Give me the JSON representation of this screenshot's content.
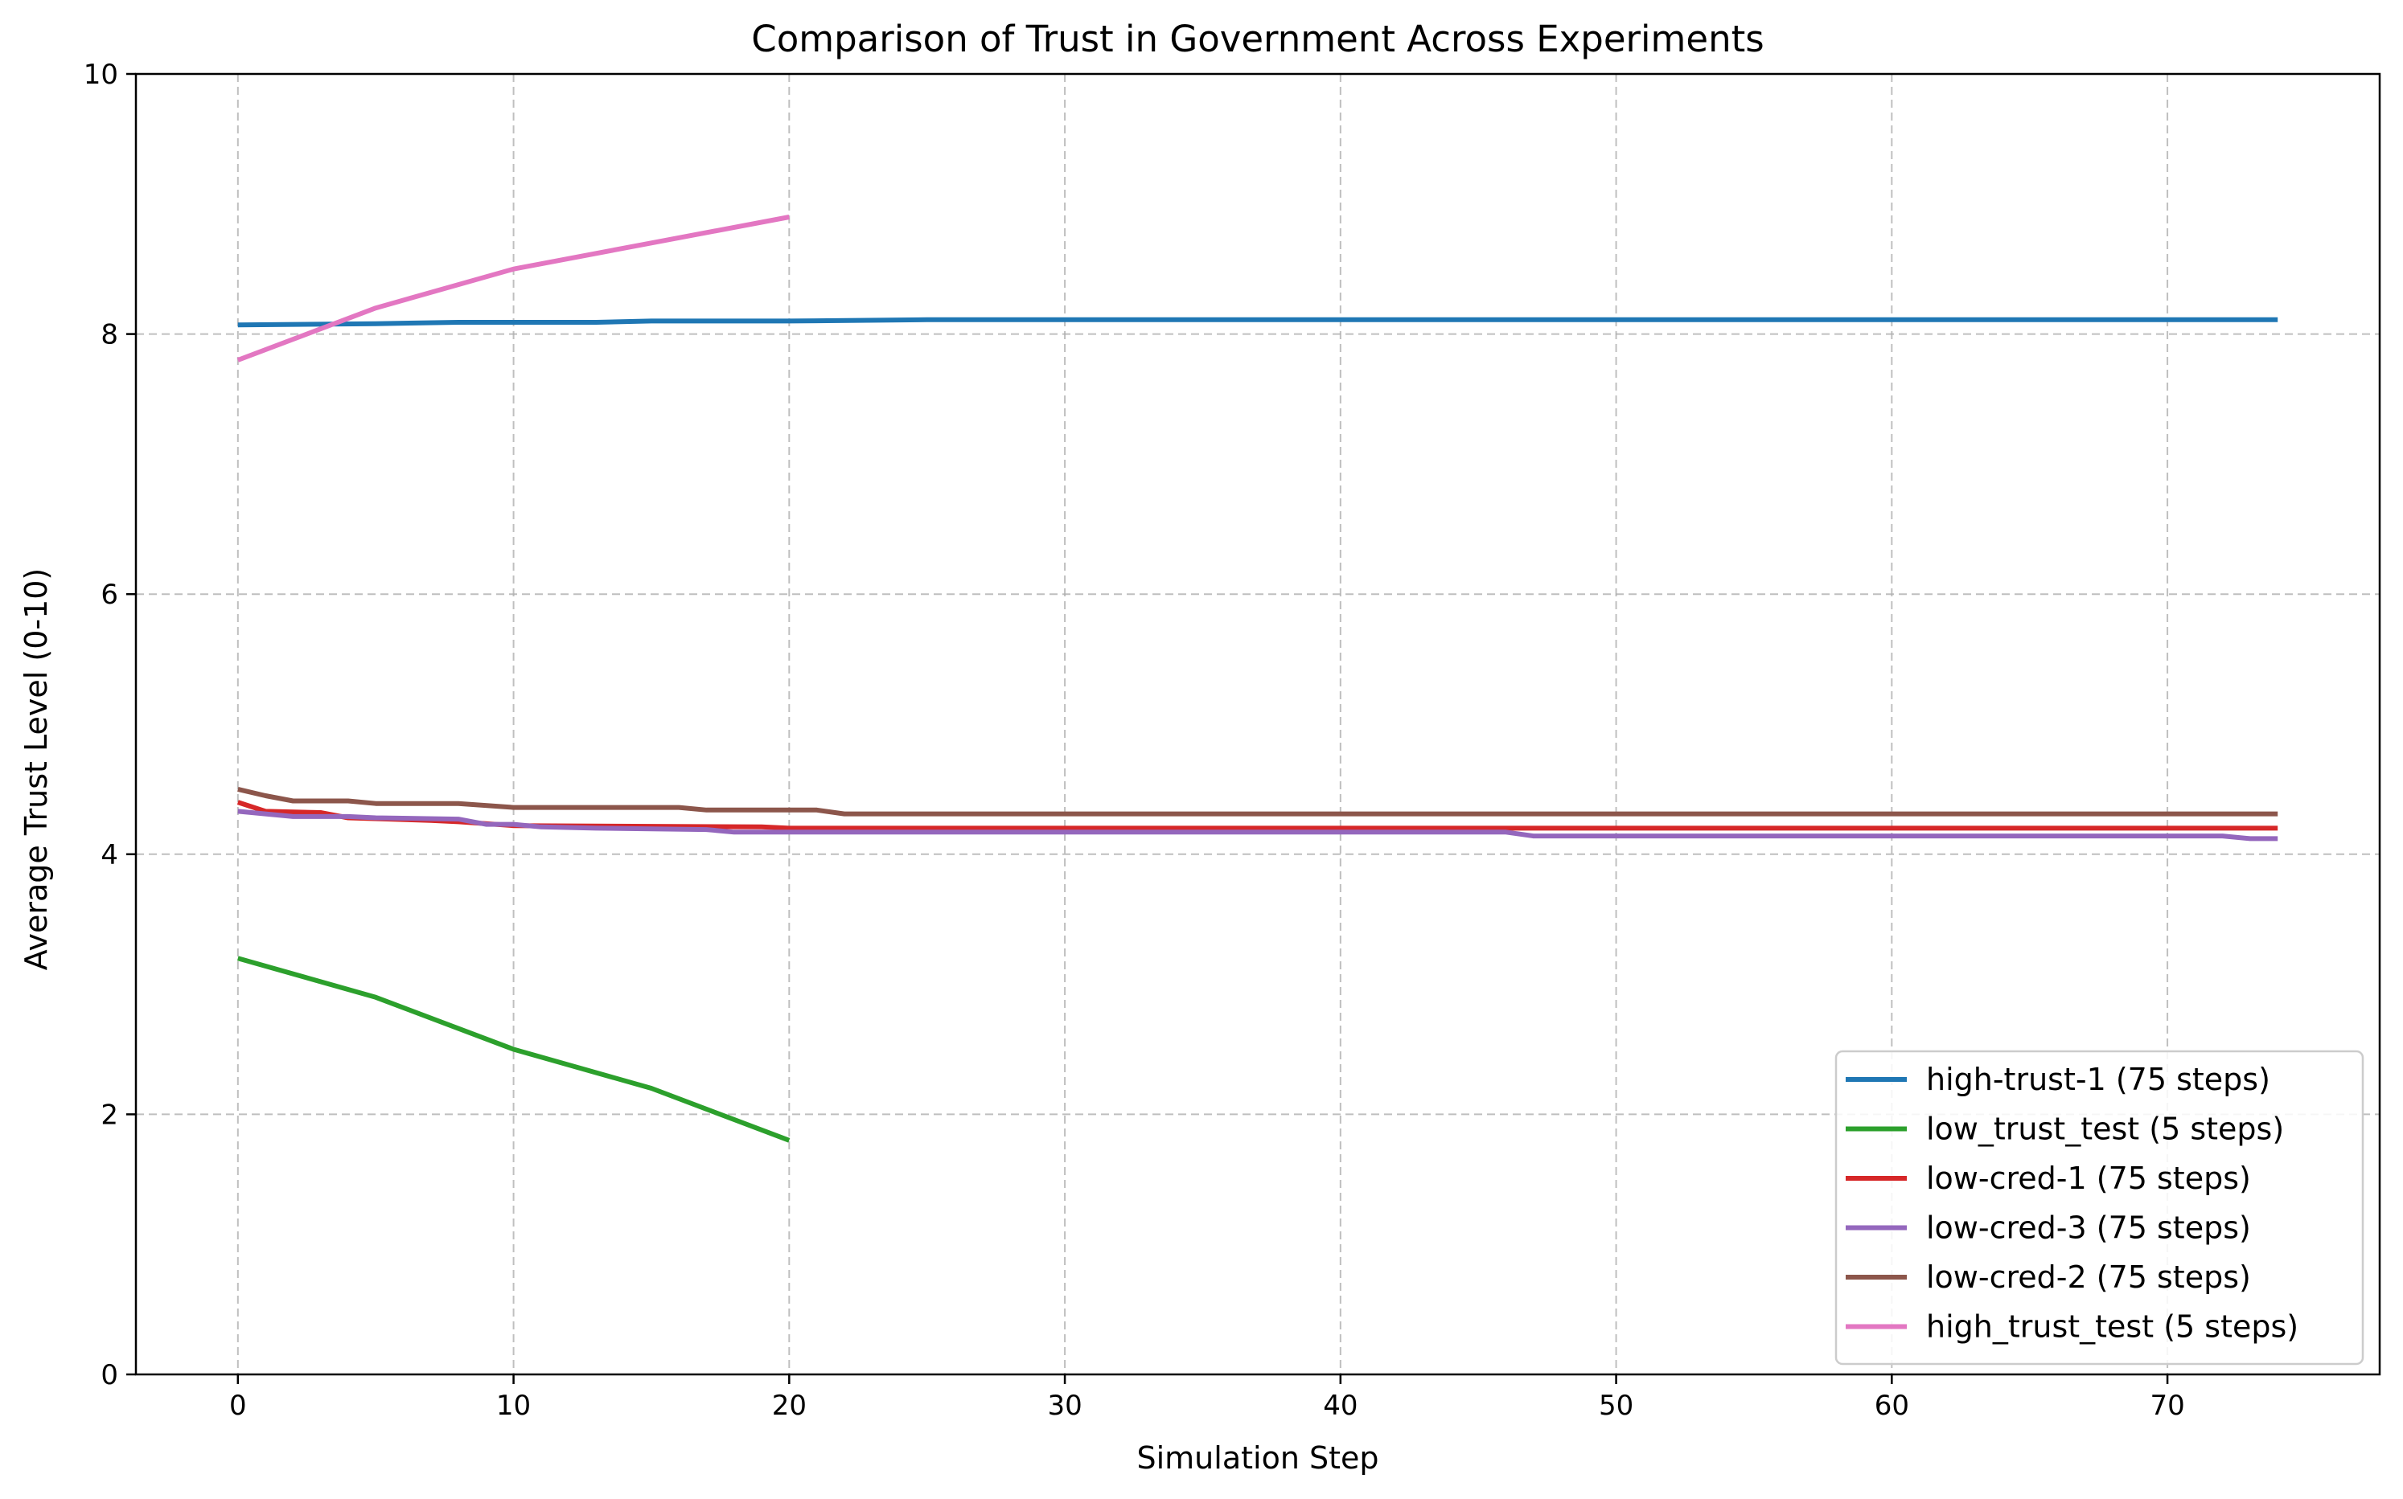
{
  "chart_data": {
    "type": "line",
    "title": "Comparison of Trust in Government Across Experiments",
    "xlabel": "Simulation Step",
    "ylabel": "Average Trust Level (0-10)",
    "xlim": [
      -3.7,
      77.7
    ],
    "ylim": [
      0,
      10
    ],
    "xticks": [
      0,
      10,
      20,
      30,
      40,
      50,
      60,
      70
    ],
    "yticks": [
      0,
      2,
      4,
      6,
      8,
      10
    ],
    "grid": true,
    "legend_position": "bottom-right",
    "series": [
      {
        "name": "high-trust-1 (75 steps)",
        "color": "#1f77b4",
        "points": [
          [
            0,
            8.07
          ],
          [
            5,
            8.08
          ],
          [
            8,
            8.09
          ],
          [
            13,
            8.09
          ],
          [
            15,
            8.1
          ],
          [
            20,
            8.1
          ],
          [
            25,
            8.11
          ],
          [
            74,
            8.11
          ]
        ]
      },
      {
        "name": "low_trust_test (5 steps)",
        "color": "#2ca02c",
        "points": [
          [
            0,
            3.2
          ],
          [
            5,
            2.9
          ],
          [
            10,
            2.5
          ],
          [
            15,
            2.2
          ],
          [
            20,
            1.8
          ]
        ]
      },
      {
        "name": "low-cred-1 (75 steps)",
        "color": "#d62728",
        "points": [
          [
            0,
            4.4
          ],
          [
            1,
            4.33
          ],
          [
            3,
            4.32
          ],
          [
            4,
            4.28
          ],
          [
            7,
            4.26
          ],
          [
            8,
            4.25
          ],
          [
            10,
            4.22
          ],
          [
            19,
            4.21
          ],
          [
            20,
            4.2
          ],
          [
            74,
            4.2
          ]
        ]
      },
      {
        "name": "low-cred-3 (75 steps)",
        "color": "#9467bd",
        "points": [
          [
            0,
            4.33
          ],
          [
            2,
            4.29
          ],
          [
            4,
            4.29
          ],
          [
            5,
            4.28
          ],
          [
            8,
            4.27
          ],
          [
            9,
            4.23
          ],
          [
            10,
            4.23
          ],
          [
            11,
            4.21
          ],
          [
            13,
            4.2
          ],
          [
            17,
            4.19
          ],
          [
            18,
            4.17
          ],
          [
            46,
            4.17
          ],
          [
            47,
            4.14
          ],
          [
            72,
            4.14
          ],
          [
            73,
            4.12
          ],
          [
            74,
            4.12
          ]
        ]
      },
      {
        "name": "low-cred-2 (75 steps)",
        "color": "#8c564b",
        "points": [
          [
            0,
            4.5
          ],
          [
            1,
            4.45
          ],
          [
            2,
            4.41
          ],
          [
            4,
            4.41
          ],
          [
            5,
            4.39
          ],
          [
            8,
            4.39
          ],
          [
            10,
            4.36
          ],
          [
            16,
            4.36
          ],
          [
            17,
            4.34
          ],
          [
            21,
            4.34
          ],
          [
            22,
            4.31
          ],
          [
            74,
            4.31
          ]
        ]
      },
      {
        "name": "high_trust_test (5 steps)",
        "color": "#e377c2",
        "points": [
          [
            0,
            7.8
          ],
          [
            5,
            8.2
          ],
          [
            10,
            8.5
          ],
          [
            15,
            8.7
          ],
          [
            20,
            8.9
          ]
        ]
      }
    ]
  }
}
